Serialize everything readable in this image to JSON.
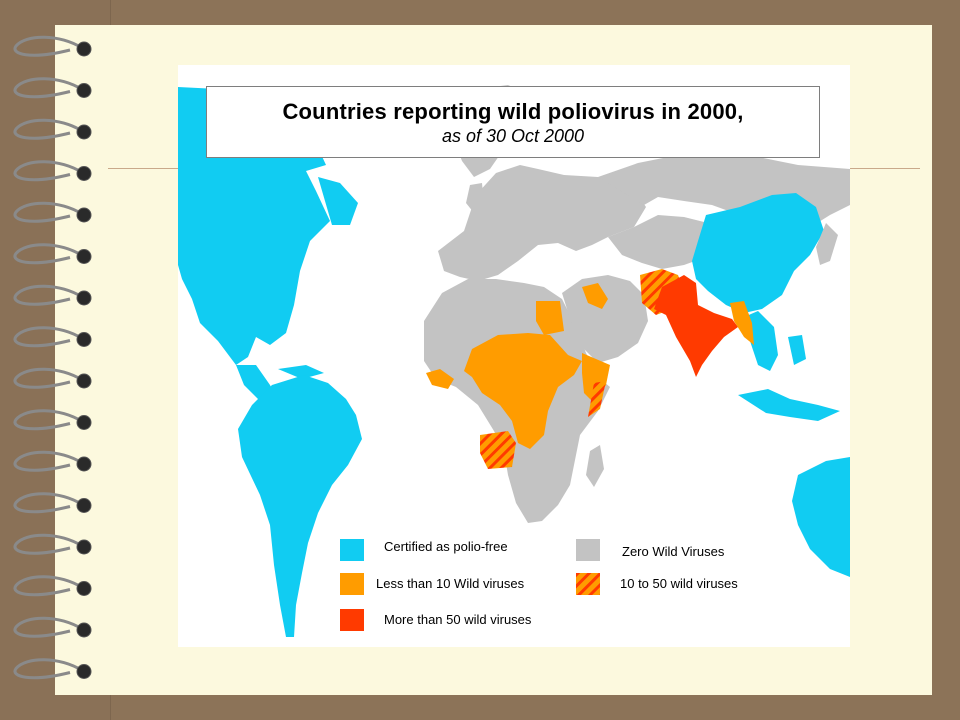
{
  "slide": {
    "title": "Countries reporting wild poliovirus in 2000,",
    "subtitle": "as of 30 Oct 2000"
  },
  "legend": [
    {
      "label": "Certified as polio-free",
      "color": "#11ccf2",
      "pattern": "solid"
    },
    {
      "label": "Zero Wild Viruses",
      "color": "#c3c3c3",
      "pattern": "solid"
    },
    {
      "label": "Less than 10 Wild viruses",
      "color": "#ff9c00",
      "pattern": "solid"
    },
    {
      "label": "10 to 50 wild viruses",
      "color": "#ff9c00",
      "pattern": "hatched"
    },
    {
      "label": "More than 50 wild viruses",
      "color": "#ff3a00",
      "pattern": "solid"
    }
  ],
  "colors": {
    "polio_free": "#11ccf2",
    "zero": "#c3c3c3",
    "less_than_10": "#ff9c00",
    "ten_to_50": "#ff9c00",
    "more_than_50": "#ff3a00",
    "slide_background": "#8c7358",
    "paper": "#fcf9de"
  }
}
